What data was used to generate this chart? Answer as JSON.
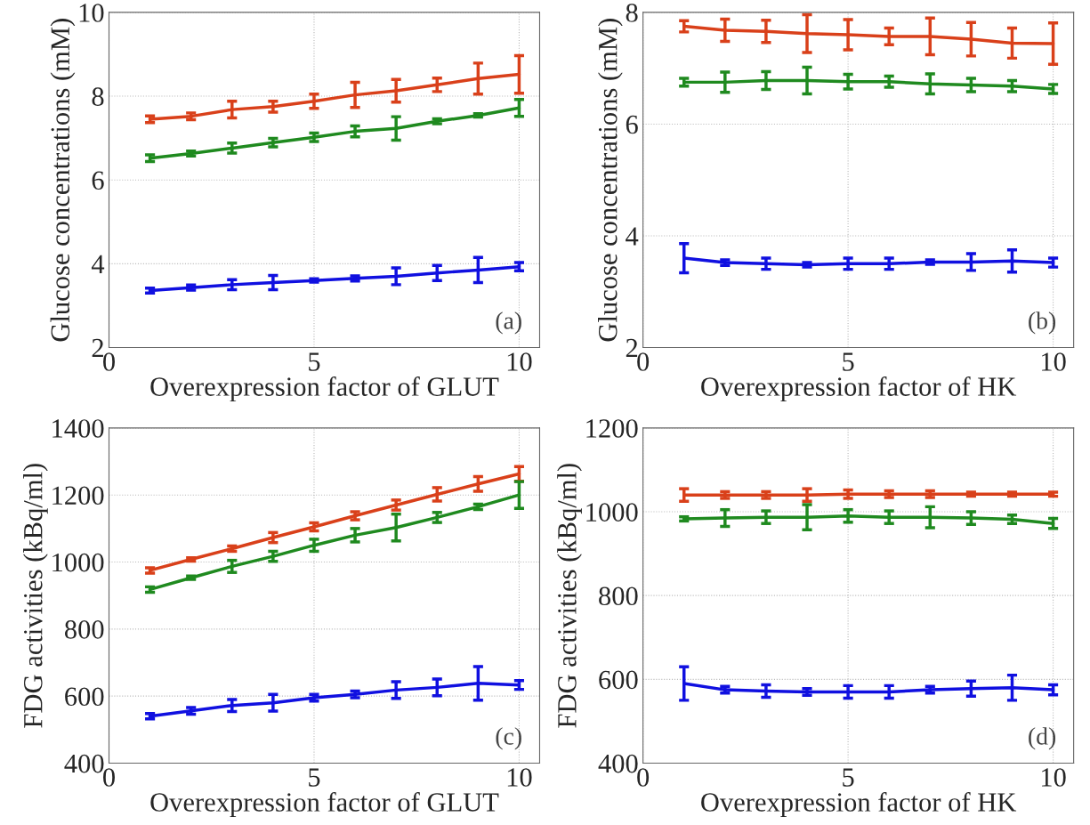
{
  "chart_data": [
    {
      "type": "line",
      "xlabel": "Overexpression factor of GLUT",
      "ylabel": "Glucose concentrations (mM)",
      "annotations": [
        "(a)"
      ],
      "x": [
        1,
        2,
        3,
        4,
        5,
        6,
        7,
        8,
        9,
        10
      ],
      "xlim": [
        0,
        10.5
      ],
      "xticks": [
        0,
        5,
        10
      ],
      "ylim": [
        2,
        10
      ],
      "yticks": [
        2,
        4,
        6,
        8,
        10
      ],
      "grid": true,
      "legend": false,
      "series": [
        {
          "color": "#d9401a",
          "values": [
            7.45,
            7.52,
            7.68,
            7.75,
            7.88,
            8.03,
            8.13,
            8.27,
            8.42,
            8.52
          ],
          "errors": [
            0.08,
            0.08,
            0.2,
            0.13,
            0.17,
            0.3,
            0.27,
            0.16,
            0.37,
            0.45
          ]
        },
        {
          "color": "#1f8a1f",
          "values": [
            6.52,
            6.63,
            6.76,
            6.89,
            7.02,
            7.16,
            7.23,
            7.4,
            7.54,
            7.72
          ],
          "errors": [
            0.08,
            0.06,
            0.12,
            0.1,
            0.1,
            0.13,
            0.28,
            0.06,
            0.04,
            0.2
          ]
        },
        {
          "color": "#1010e0",
          "values": [
            3.36,
            3.43,
            3.5,
            3.55,
            3.6,
            3.65,
            3.7,
            3.78,
            3.85,
            3.93
          ],
          "errors": [
            0.06,
            0.06,
            0.12,
            0.17,
            0.04,
            0.06,
            0.2,
            0.18,
            0.3,
            0.1
          ]
        }
      ]
    },
    {
      "type": "line",
      "xlabel": "Overexpression factor of HK",
      "ylabel": "Glucose concentrations (mM)",
      "annotations": [
        "(b)"
      ],
      "x": [
        1,
        2,
        3,
        4,
        5,
        6,
        7,
        8,
        9,
        10
      ],
      "xlim": [
        0,
        10.5
      ],
      "xticks": [
        0,
        5,
        10
      ],
      "ylim": [
        2,
        8
      ],
      "yticks": [
        2,
        4,
        6,
        8
      ],
      "grid": true,
      "legend": false,
      "series": [
        {
          "color": "#d9401a",
          "values": [
            7.75,
            7.68,
            7.66,
            7.62,
            7.6,
            7.57,
            7.57,
            7.52,
            7.45,
            7.44
          ],
          "errors": [
            0.1,
            0.2,
            0.2,
            0.34,
            0.27,
            0.15,
            0.33,
            0.3,
            0.27,
            0.37
          ]
        },
        {
          "color": "#1f8a1f",
          "values": [
            6.75,
            6.75,
            6.78,
            6.78,
            6.76,
            6.76,
            6.72,
            6.7,
            6.68,
            6.63
          ],
          "errors": [
            0.07,
            0.18,
            0.16,
            0.24,
            0.13,
            0.1,
            0.18,
            0.12,
            0.1,
            0.08
          ]
        },
        {
          "color": "#1010e0",
          "values": [
            3.6,
            3.52,
            3.5,
            3.48,
            3.5,
            3.5,
            3.53,
            3.53,
            3.55,
            3.52
          ],
          "errors": [
            0.26,
            0.05,
            0.1,
            0.04,
            0.1,
            0.1,
            0.04,
            0.15,
            0.2,
            0.08
          ]
        }
      ]
    },
    {
      "type": "line",
      "xlabel": "Overexpression factor of GLUT",
      "ylabel": "FDG activities (kBq/ml)",
      "annotations": [
        "(c)"
      ],
      "x": [
        1,
        2,
        3,
        4,
        5,
        6,
        7,
        8,
        9,
        10
      ],
      "xlim": [
        0,
        10.5
      ],
      "xticks": [
        0,
        5,
        10
      ],
      "ylim": [
        400,
        1400
      ],
      "yticks": [
        400,
        600,
        800,
        1000,
        1200,
        1400
      ],
      "grid": true,
      "legend": false,
      "series": [
        {
          "color": "#d9401a",
          "values": [
            975,
            1008,
            1040,
            1073,
            1105,
            1138,
            1170,
            1202,
            1233,
            1263
          ],
          "errors": [
            8,
            5,
            8,
            15,
            12,
            12,
            15,
            20,
            22,
            22
          ]
        },
        {
          "color": "#1f8a1f",
          "values": [
            918,
            953,
            987,
            1017,
            1050,
            1080,
            1103,
            1133,
            1165,
            1200
          ],
          "errors": [
            8,
            5,
            18,
            15,
            18,
            20,
            40,
            15,
            8,
            40
          ]
        },
        {
          "color": "#1010e0",
          "values": [
            540,
            556,
            572,
            580,
            595,
            605,
            618,
            626,
            638,
            633
          ],
          "errors": [
            8,
            10,
            18,
            25,
            10,
            10,
            25,
            25,
            50,
            13
          ]
        }
      ]
    },
    {
      "type": "line",
      "xlabel": "Overexpression factor of HK",
      "ylabel": "FDG activities (kBq/ml)",
      "annotations": [
        "(d)"
      ],
      "x": [
        1,
        2,
        3,
        4,
        5,
        6,
        7,
        8,
        9,
        10
      ],
      "xlim": [
        0,
        10.5
      ],
      "xticks": [
        0,
        5,
        10
      ],
      "ylim": [
        400,
        1200
      ],
      "yticks": [
        400,
        600,
        800,
        1000,
        1200
      ],
      "grid": true,
      "legend": false,
      "series": [
        {
          "color": "#d9401a",
          "values": [
            1040,
            1040,
            1040,
            1040,
            1042,
            1042,
            1042,
            1042,
            1042,
            1042
          ],
          "errors": [
            15,
            8,
            8,
            15,
            10,
            8,
            8,
            5,
            5,
            5
          ]
        },
        {
          "color": "#1f8a1f",
          "values": [
            983,
            985,
            987,
            987,
            990,
            987,
            987,
            985,
            982,
            972
          ],
          "errors": [
            5,
            20,
            15,
            30,
            15,
            15,
            25,
            15,
            10,
            12
          ]
        },
        {
          "color": "#1010e0",
          "values": [
            590,
            575,
            572,
            570,
            570,
            570,
            575,
            578,
            580,
            575
          ],
          "errors": [
            40,
            8,
            15,
            8,
            15,
            15,
            8,
            18,
            30,
            12
          ]
        }
      ]
    }
  ]
}
